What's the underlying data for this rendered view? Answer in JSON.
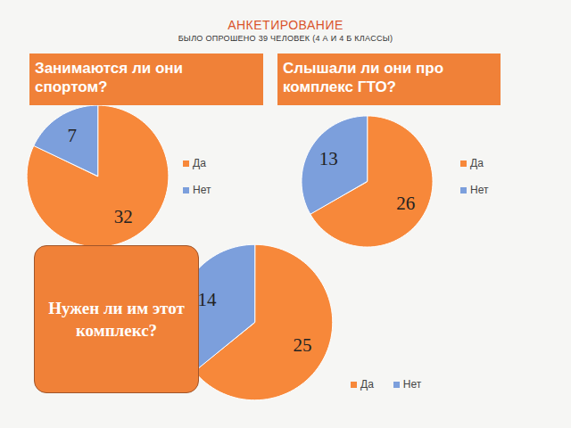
{
  "title": "АНКЕТИРОВАНИЕ",
  "subtitle": "БЫЛО ОПРОШЕНО 39 ЧЕЛОВЕК (4 А И 4 Б КЛАССЫ)",
  "chart_data": [
    {
      "type": "pie",
      "title": "Занимаются ли они спортом?",
      "categories": [
        "Да",
        "Нет"
      ],
      "values": [
        32,
        7
      ],
      "colors": [
        "#f7883a",
        "#7c9fdc"
      ],
      "data_labels": true,
      "legend": "right"
    },
    {
      "type": "pie",
      "title": "Слышали ли они про комплекс ГТО?",
      "categories": [
        "Да",
        "Нет"
      ],
      "values": [
        26,
        13
      ],
      "colors": [
        "#f7883a",
        "#7c9fdc"
      ],
      "data_labels": true,
      "legend": "right"
    },
    {
      "type": "pie",
      "title": "Нужен ли им этот комплекс?",
      "categories": [
        "Да",
        "Нет"
      ],
      "values": [
        25,
        14
      ],
      "colors": [
        "#f7883a",
        "#7c9fdc"
      ],
      "data_labels": true,
      "legend": "bottom"
    }
  ]
}
